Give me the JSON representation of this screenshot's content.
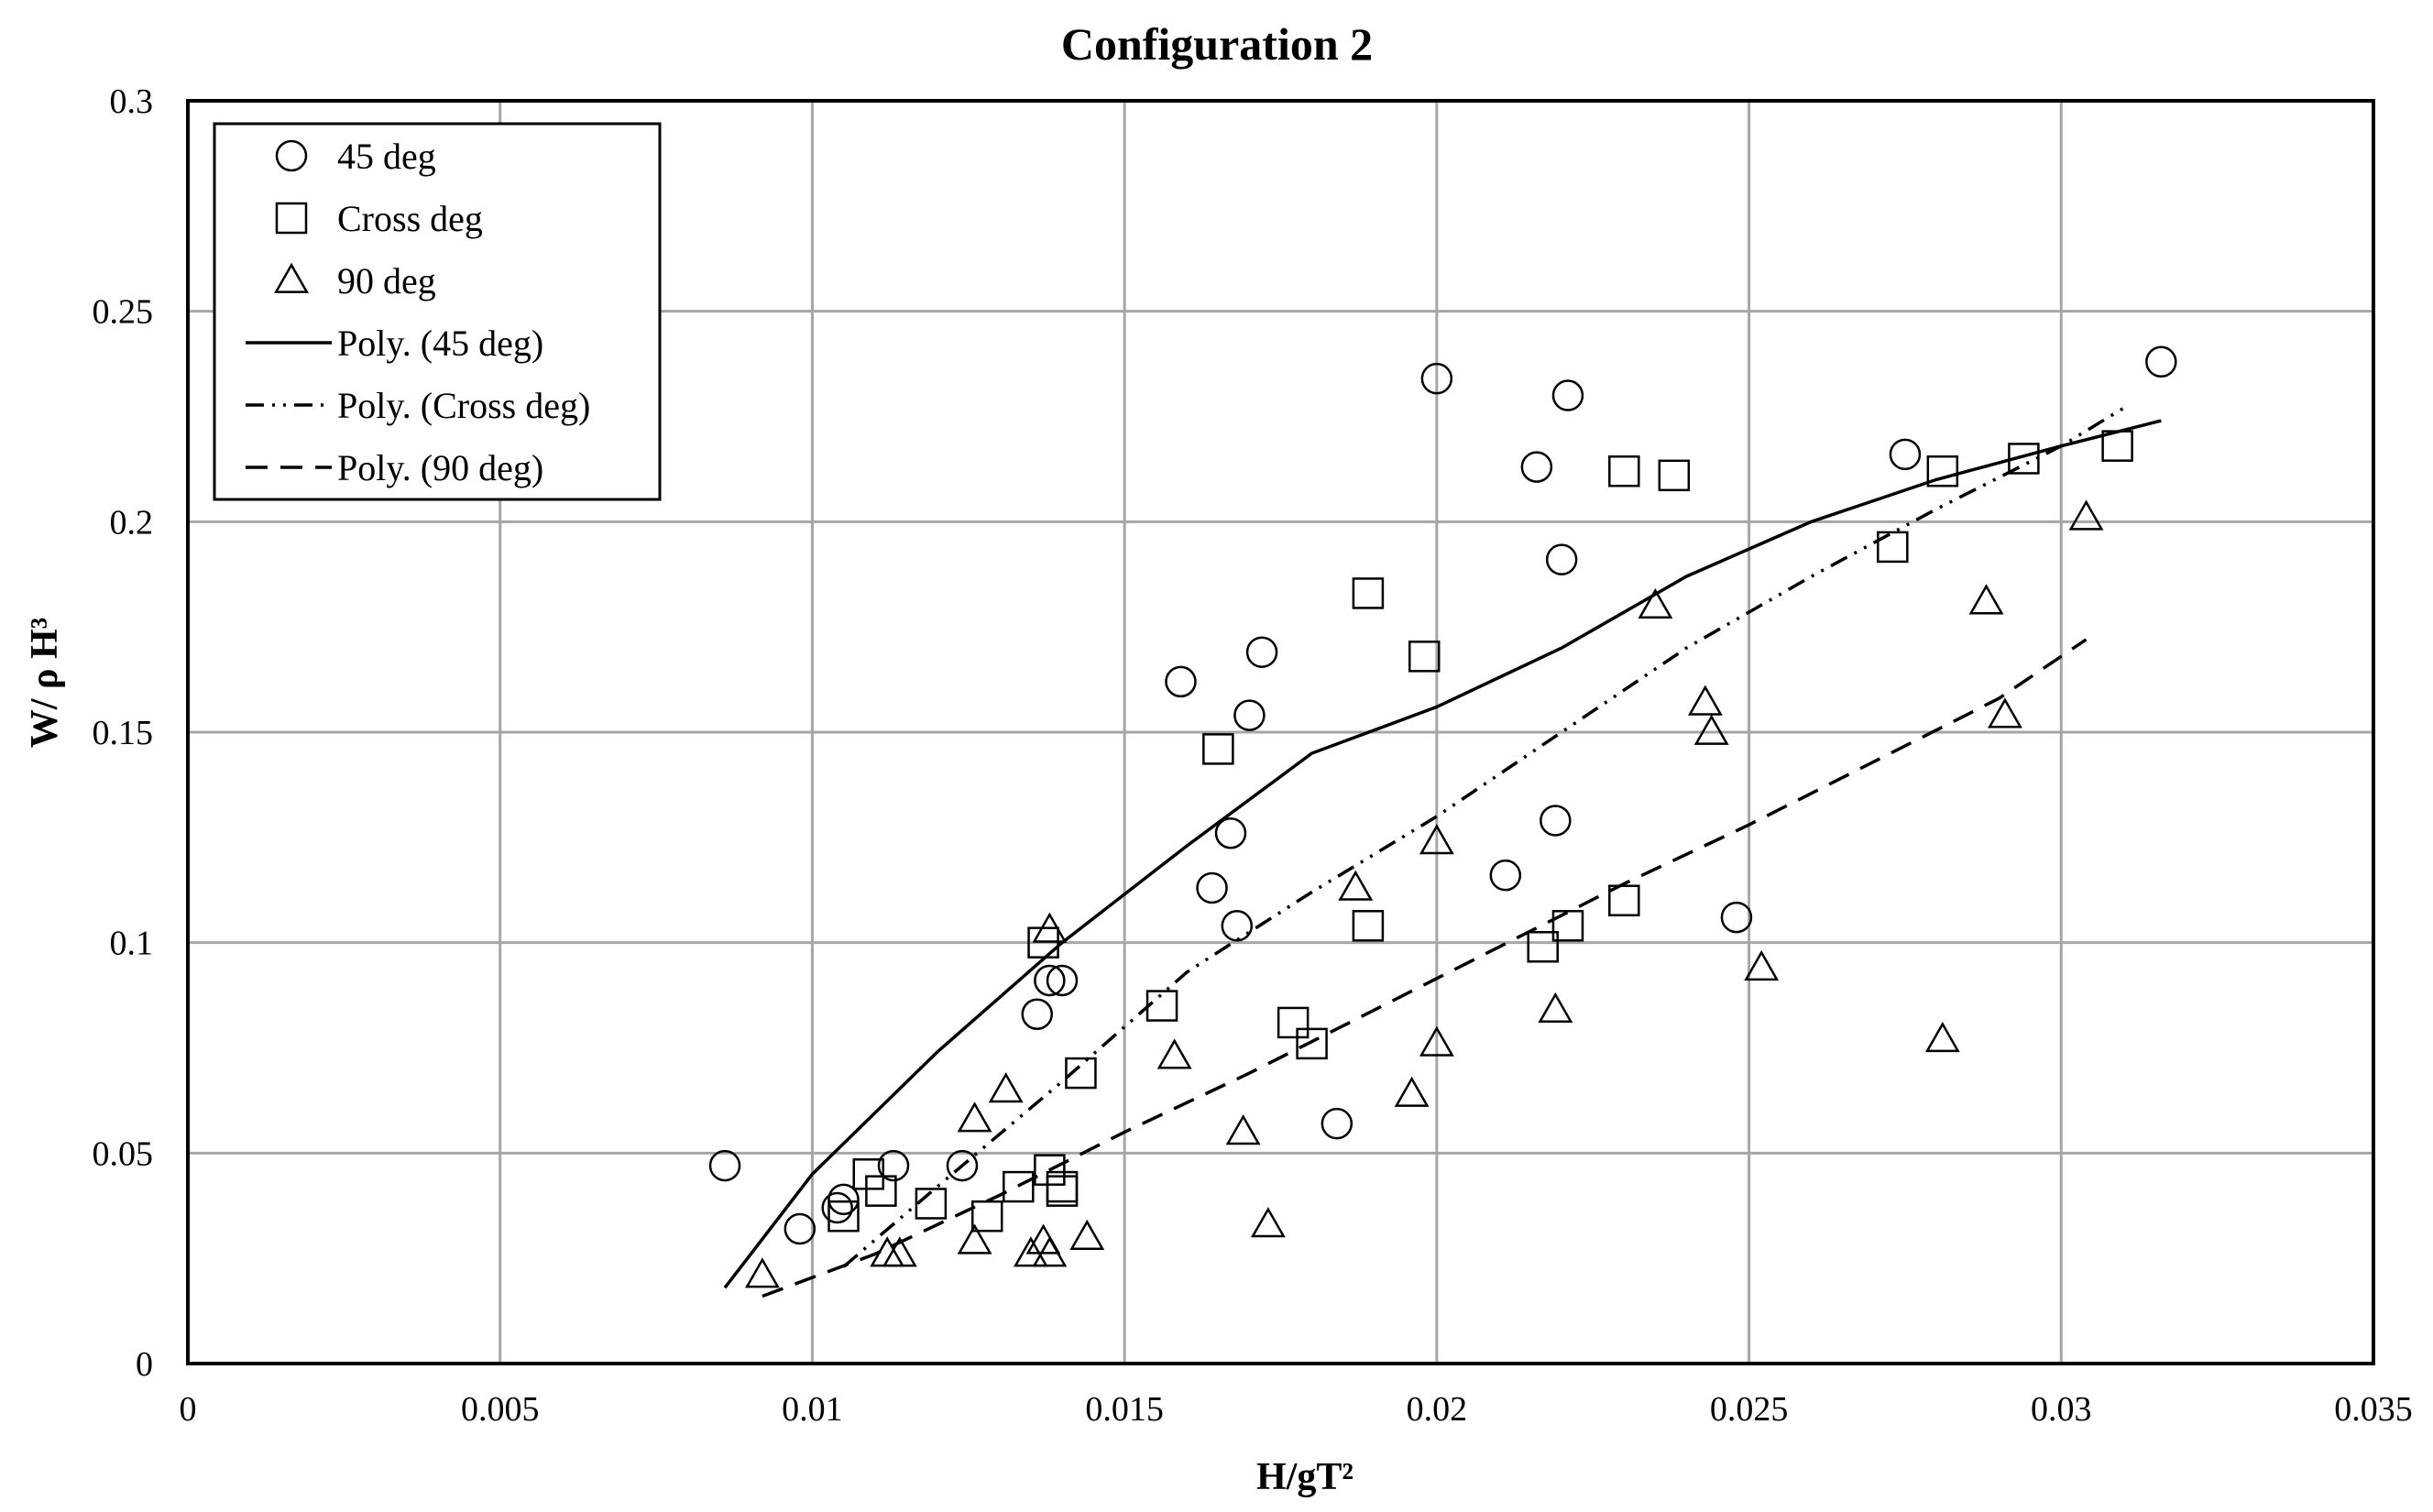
{
  "chart_data": {
    "type": "scatter",
    "title": "Configuration 2",
    "xlabel": "H/gT²",
    "ylabel": "W/ ρ H³",
    "xlim": [
      0,
      0.035
    ],
    "ylim": [
      0,
      0.3
    ],
    "grid": true,
    "legend_position": "top-left",
    "x_ticks": [
      "0",
      "0.005",
      "0.01",
      "0.015",
      "0.02",
      "0.025",
      "0.03",
      "0.035"
    ],
    "y_ticks": [
      "0",
      "0.05",
      "0.1",
      "0.15",
      "0.2",
      "0.25",
      "0.3"
    ],
    "series": [
      {
        "name": "45 deg",
        "marker": "circle",
        "points": [
          [
            0.0086,
            0.047
          ],
          [
            0.0098,
            0.032
          ],
          [
            0.0104,
            0.037
          ],
          [
            0.0105,
            0.039
          ],
          [
            0.0113,
            0.047
          ],
          [
            0.0124,
            0.047
          ],
          [
            0.0136,
            0.083
          ],
          [
            0.0138,
            0.091
          ],
          [
            0.014,
            0.091
          ],
          [
            0.0159,
            0.162
          ],
          [
            0.0164,
            0.113
          ],
          [
            0.0167,
            0.126
          ],
          [
            0.0168,
            0.104
          ],
          [
            0.017,
            0.154
          ],
          [
            0.0172,
            0.169
          ],
          [
            0.0184,
            0.057
          ],
          [
            0.02,
            0.234
          ],
          [
            0.0211,
            0.116
          ],
          [
            0.0216,
            0.213
          ],
          [
            0.0219,
            0.129
          ],
          [
            0.022,
            0.191
          ],
          [
            0.0221,
            0.23
          ],
          [
            0.0248,
            0.106
          ],
          [
            0.0275,
            0.216
          ],
          [
            0.0316,
            0.238
          ]
        ]
      },
      {
        "name": "Cross deg",
        "marker": "square",
        "points": [
          [
            0.0105,
            0.035
          ],
          [
            0.0109,
            0.045
          ],
          [
            0.0111,
            0.041
          ],
          [
            0.0119,
            0.038
          ],
          [
            0.0128,
            0.035
          ],
          [
            0.0133,
            0.042
          ],
          [
            0.0137,
            0.1
          ],
          [
            0.0138,
            0.046
          ],
          [
            0.014,
            0.042
          ],
          [
            0.014,
            0.041
          ],
          [
            0.0143,
            0.069
          ],
          [
            0.0156,
            0.085
          ],
          [
            0.0165,
            0.146
          ],
          [
            0.0177,
            0.081
          ],
          [
            0.018,
            0.076
          ],
          [
            0.0189,
            0.183
          ],
          [
            0.0189,
            0.104
          ],
          [
            0.0198,
            0.168
          ],
          [
            0.0217,
            0.099
          ],
          [
            0.0221,
            0.104
          ],
          [
            0.023,
            0.11
          ],
          [
            0.023,
            0.212
          ],
          [
            0.0238,
            0.211
          ],
          [
            0.0273,
            0.194
          ],
          [
            0.0281,
            0.212
          ],
          [
            0.0294,
            0.215
          ],
          [
            0.0309,
            0.218
          ]
        ]
      },
      {
        "name": "90 deg",
        "marker": "triangle",
        "points": [
          [
            0.0092,
            0.021
          ],
          [
            0.0112,
            0.026
          ],
          [
            0.0114,
            0.026
          ],
          [
            0.0126,
            0.029
          ],
          [
            0.0126,
            0.058
          ],
          [
            0.0131,
            0.065
          ],
          [
            0.0135,
            0.026
          ],
          [
            0.0137,
            0.029
          ],
          [
            0.0138,
            0.026
          ],
          [
            0.0138,
            0.103
          ],
          [
            0.0144,
            0.03
          ],
          [
            0.0158,
            0.073
          ],
          [
            0.0169,
            0.055
          ],
          [
            0.0173,
            0.033
          ],
          [
            0.0187,
            0.113
          ],
          [
            0.0196,
            0.064
          ],
          [
            0.02,
            0.076
          ],
          [
            0.02,
            0.124
          ],
          [
            0.0219,
            0.084
          ],
          [
            0.0235,
            0.18
          ],
          [
            0.0243,
            0.157
          ],
          [
            0.0244,
            0.15
          ],
          [
            0.0252,
            0.094
          ],
          [
            0.0281,
            0.077
          ],
          [
            0.0288,
            0.181
          ],
          [
            0.0291,
            0.154
          ],
          [
            0.0304,
            0.201
          ]
        ]
      }
    ],
    "trendlines": [
      {
        "name": "Poly. (45 deg)",
        "style": "solid",
        "points": [
          [
            0.0086,
            0.018
          ],
          [
            0.01,
            0.045
          ],
          [
            0.012,
            0.074
          ],
          [
            0.014,
            0.1
          ],
          [
            0.016,
            0.123
          ],
          [
            0.018,
            0.145
          ],
          [
            0.02,
            0.156
          ],
          [
            0.022,
            0.17
          ],
          [
            0.024,
            0.187
          ],
          [
            0.026,
            0.2
          ],
          [
            0.028,
            0.21
          ],
          [
            0.03,
            0.218
          ],
          [
            0.0316,
            0.224
          ]
        ]
      },
      {
        "name": "Poly. (Cross deg)",
        "style": "dash-dot-dot",
        "points": [
          [
            0.0105,
            0.023
          ],
          [
            0.012,
            0.042
          ],
          [
            0.014,
            0.067
          ],
          [
            0.016,
            0.093
          ],
          [
            0.018,
            0.112
          ],
          [
            0.02,
            0.13
          ],
          [
            0.022,
            0.15
          ],
          [
            0.024,
            0.17
          ],
          [
            0.026,
            0.187
          ],
          [
            0.028,
            0.203
          ],
          [
            0.03,
            0.218
          ],
          [
            0.031,
            0.227
          ]
        ]
      },
      {
        "name": "Poly. (90 deg)",
        "style": "dashed",
        "points": [
          [
            0.0092,
            0.016
          ],
          [
            0.011,
            0.026
          ],
          [
            0.013,
            0.04
          ],
          [
            0.015,
            0.055
          ],
          [
            0.017,
            0.069
          ],
          [
            0.019,
            0.084
          ],
          [
            0.021,
            0.099
          ],
          [
            0.023,
            0.114
          ],
          [
            0.025,
            0.128
          ],
          [
            0.027,
            0.143
          ],
          [
            0.029,
            0.158
          ],
          [
            0.0304,
            0.172
          ]
        ]
      }
    ]
  }
}
